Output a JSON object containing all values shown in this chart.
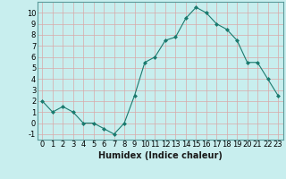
{
  "x": [
    0,
    1,
    2,
    3,
    4,
    5,
    6,
    7,
    8,
    9,
    10,
    11,
    12,
    13,
    14,
    15,
    16,
    17,
    18,
    19,
    20,
    21,
    22,
    23
  ],
  "y": [
    2,
    1,
    1.5,
    1,
    0,
    0,
    -0.5,
    -1,
    0,
    2.5,
    5.5,
    6,
    7.5,
    7.8,
    9.5,
    10.5,
    10,
    9,
    8.5,
    7.5,
    5.5,
    5.5,
    4,
    2.5
  ],
  "line_color": "#1a7a6e",
  "marker": "D",
  "marker_size": 2,
  "bg_color": "#c8eeee",
  "grid_major_color": "#d8a8a8",
  "grid_minor_color": "#e8c8c8",
  "xlabel": "Humidex (Indice chaleur)",
  "xlim": [
    -0.5,
    23.5
  ],
  "ylim": [
    -1.5,
    11
  ],
  "xticks": [
    0,
    1,
    2,
    3,
    4,
    5,
    6,
    7,
    8,
    9,
    10,
    11,
    12,
    13,
    14,
    15,
    16,
    17,
    18,
    19,
    20,
    21,
    22,
    23
  ],
  "yticks": [
    -1,
    0,
    1,
    2,
    3,
    4,
    5,
    6,
    7,
    8,
    9,
    10
  ],
  "tick_fontsize": 6,
  "label_fontsize": 7
}
